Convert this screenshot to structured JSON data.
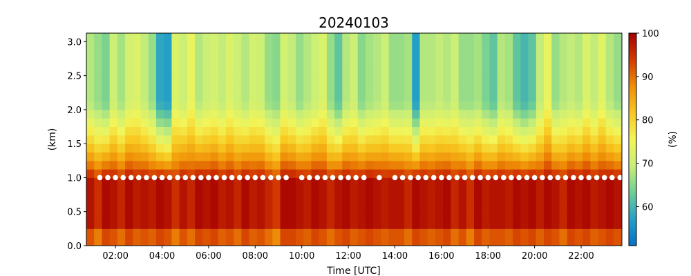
{
  "chart_data": {
    "type": "heatmap",
    "title": "20240103",
    "xlabel": "Time [UTC]",
    "ylabel": "(km)",
    "colorbar_label": "(%)",
    "x_range_hours": [
      0.75,
      23.75
    ],
    "y_range_km": [
      0.0,
      3.125
    ],
    "x_ticks": [
      "02:00",
      "04:00",
      "06:00",
      "08:00",
      "10:00",
      "12:00",
      "14:00",
      "16:00",
      "18:00",
      "20:00",
      "22:00"
    ],
    "x_tick_hours": [
      2,
      4,
      6,
      8,
      10,
      12,
      14,
      16,
      18,
      20,
      22
    ],
    "y_ticks": [
      "0.0",
      "0.5",
      "1.0",
      "1.5",
      "2.0",
      "2.5",
      "3.0"
    ],
    "y_tick_values": [
      0.0,
      0.5,
      1.0,
      1.5,
      2.0,
      2.5,
      3.0
    ],
    "colorbar_range": [
      51,
      100
    ],
    "colorbar_ticks": [
      "60",
      "70",
      "80",
      "90",
      "100"
    ],
    "colorbar_tick_values": [
      60,
      70,
      80,
      90,
      100
    ],
    "colormap": [
      "#0571c8",
      "#25a0c8",
      "#6fcf93",
      "#c8ee78",
      "#f3f558",
      "#f7c820",
      "#ef8e07",
      "#d33a00",
      "#a40000"
    ],
    "grid": false,
    "time_step_hours": 0.333,
    "height_step_km": 0.125,
    "marker_height_km": 1.0,
    "marker_color": "#ffffff",
    "marker_times_hours": [
      1.33,
      1.67,
      2.0,
      2.33,
      2.67,
      3.0,
      3.33,
      3.67,
      4.0,
      4.33,
      4.67,
      5.0,
      5.33,
      5.67,
      6.0,
      6.33,
      6.67,
      7.0,
      7.33,
      7.67,
      8.0,
      8.33,
      8.67,
      9.0,
      9.33,
      10.0,
      10.33,
      10.67,
      11.0,
      11.33,
      11.67,
      12.0,
      12.33,
      12.67,
      13.33,
      14.0,
      14.33,
      14.67,
      15.0,
      15.33,
      15.67,
      16.0,
      16.33,
      16.67,
      17.0,
      17.33,
      17.67,
      18.0,
      18.33,
      18.67,
      19.0,
      19.33,
      19.67,
      20.0,
      20.33,
      20.67,
      21.0,
      21.33,
      21.67,
      22.0,
      22.33,
      22.67,
      23.0,
      23.33,
      23.67
    ],
    "column_profiles": [
      {
        "surface": 98,
        "top": 68
      },
      {
        "surface": 95,
        "top": 66
      },
      {
        "surface": 99,
        "top": 64
      },
      {
        "surface": 98,
        "top": 70
      },
      {
        "surface": 96,
        "top": 67
      },
      {
        "surface": 99,
        "top": 71
      },
      {
        "surface": 97,
        "top": 72
      },
      {
        "surface": 98,
        "top": 69
      },
      {
        "surface": 97,
        "top": 66
      },
      {
        "surface": 99,
        "top": 58
      },
      {
        "surface": 98,
        "top": 57
      },
      {
        "surface": 95,
        "top": 72
      },
      {
        "surface": 98,
        "top": 70
      },
      {
        "surface": 96,
        "top": 74
      },
      {
        "surface": 99,
        "top": 68
      },
      {
        "surface": 98,
        "top": 70
      },
      {
        "surface": 99,
        "top": 71
      },
      {
        "surface": 97,
        "top": 69
      },
      {
        "surface": 98,
        "top": 72
      },
      {
        "surface": 96,
        "top": 70
      },
      {
        "surface": 99,
        "top": 68
      },
      {
        "surface": 97,
        "top": 71
      },
      {
        "surface": 98,
        "top": 70
      },
      {
        "surface": 96,
        "top": 66
      },
      {
        "surface": 94,
        "top": 65
      },
      {
        "surface": 99,
        "top": 71
      },
      {
        "surface": 99,
        "top": 69
      },
      {
        "surface": 98,
        "top": 66
      },
      {
        "surface": 97,
        "top": 68
      },
      {
        "surface": 99,
        "top": 70
      },
      {
        "surface": 98,
        "top": 72
      },
      {
        "surface": 96,
        "top": 66
      },
      {
        "surface": 98,
        "top": 62
      },
      {
        "surface": 99,
        "top": 68
      },
      {
        "surface": 97,
        "top": 70
      },
      {
        "surface": 98,
        "top": 65
      },
      {
        "surface": 99,
        "top": 67
      },
      {
        "surface": 98,
        "top": 68
      },
      {
        "surface": 97,
        "top": 70
      },
      {
        "surface": 98,
        "top": 66
      },
      {
        "surface": 98,
        "top": 66
      },
      {
        "surface": 96,
        "top": 67
      },
      {
        "surface": 99,
        "top": 57
      },
      {
        "surface": 98,
        "top": 68
      },
      {
        "surface": 97,
        "top": 68
      },
      {
        "surface": 98,
        "top": 69
      },
      {
        "surface": 99,
        "top": 68
      },
      {
        "surface": 96,
        "top": 70
      },
      {
        "surface": 98,
        "top": 66
      },
      {
        "surface": 95,
        "top": 66
      },
      {
        "surface": 99,
        "top": 67
      },
      {
        "surface": 97,
        "top": 64
      },
      {
        "surface": 98,
        "top": 62
      },
      {
        "surface": 98,
        "top": 68
      },
      {
        "surface": 97,
        "top": 67
      },
      {
        "surface": 99,
        "top": 62
      },
      {
        "surface": 98,
        "top": 60
      },
      {
        "surface": 99,
        "top": 62
      },
      {
        "surface": 97,
        "top": 69
      },
      {
        "surface": 99,
        "top": 74
      },
      {
        "surface": 98,
        "top": 66
      },
      {
        "surface": 96,
        "top": 68
      },
      {
        "surface": 99,
        "top": 69
      },
      {
        "surface": 98,
        "top": 68
      },
      {
        "surface": 99,
        "top": 72
      },
      {
        "surface": 97,
        "top": 69
      },
      {
        "surface": 98,
        "top": 73
      },
      {
        "surface": 99,
        "top": 68
      },
      {
        "surface": 98,
        "top": 66
      },
      {
        "surface": 93,
        "top": 72
      }
    ]
  }
}
